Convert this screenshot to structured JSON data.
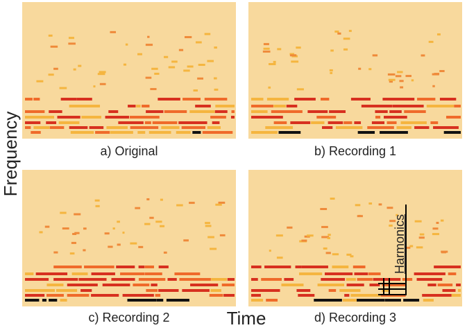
{
  "panels": [
    {
      "caption": "a) Original"
    },
    {
      "caption": "b) Recording 1"
    },
    {
      "caption": "c) Recording 2"
    },
    {
      "caption": "d) Recording 3"
    }
  ],
  "y_label": "Frequency",
  "x_label": "Time",
  "annotation": "Harmonics"
}
